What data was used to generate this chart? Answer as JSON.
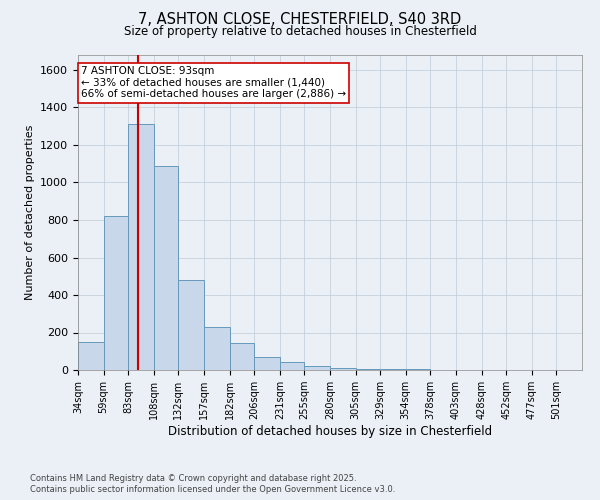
{
  "title_line1": "7, ASHTON CLOSE, CHESTERFIELD, S40 3RD",
  "title_line2": "Size of property relative to detached houses in Chesterfield",
  "xlabel": "Distribution of detached houses by size in Chesterfield",
  "ylabel": "Number of detached properties",
  "footnote_line1": "Contains HM Land Registry data © Crown copyright and database right 2025.",
  "footnote_line2": "Contains public sector information licensed under the Open Government Licence v3.0.",
  "bar_edges": [
    34,
    59,
    83,
    108,
    132,
    157,
    182,
    206,
    231,
    255,
    280,
    305,
    329,
    354,
    378,
    403,
    428,
    452,
    477,
    501,
    526
  ],
  "bar_heights": [
    150,
    820,
    1310,
    1090,
    480,
    230,
    145,
    70,
    45,
    20,
    12,
    8,
    5,
    3,
    2,
    2,
    1,
    0,
    0,
    0
  ],
  "bar_color": "#c8d8ea",
  "bar_edgecolor": "#6699bb",
  "property_size": 93,
  "annotation_line1": "7 ASHTON CLOSE: 93sqm",
  "annotation_line2": "← 33% of detached houses are smaller (1,440)",
  "annotation_line3": "66% of semi-detached houses are larger (2,886) →",
  "redline_color": "#cc0000",
  "ylim": [
    0,
    1680
  ],
  "yticks": [
    0,
    200,
    400,
    600,
    800,
    1000,
    1200,
    1400,
    1600
  ],
  "annotation_box_edgecolor": "#cc0000",
  "annotation_box_facecolor": "#ffffff",
  "bg_color": "#eaf0f6",
  "plot_bg_color": "#eaf0f6",
  "grid_color": "#c0ccd8"
}
